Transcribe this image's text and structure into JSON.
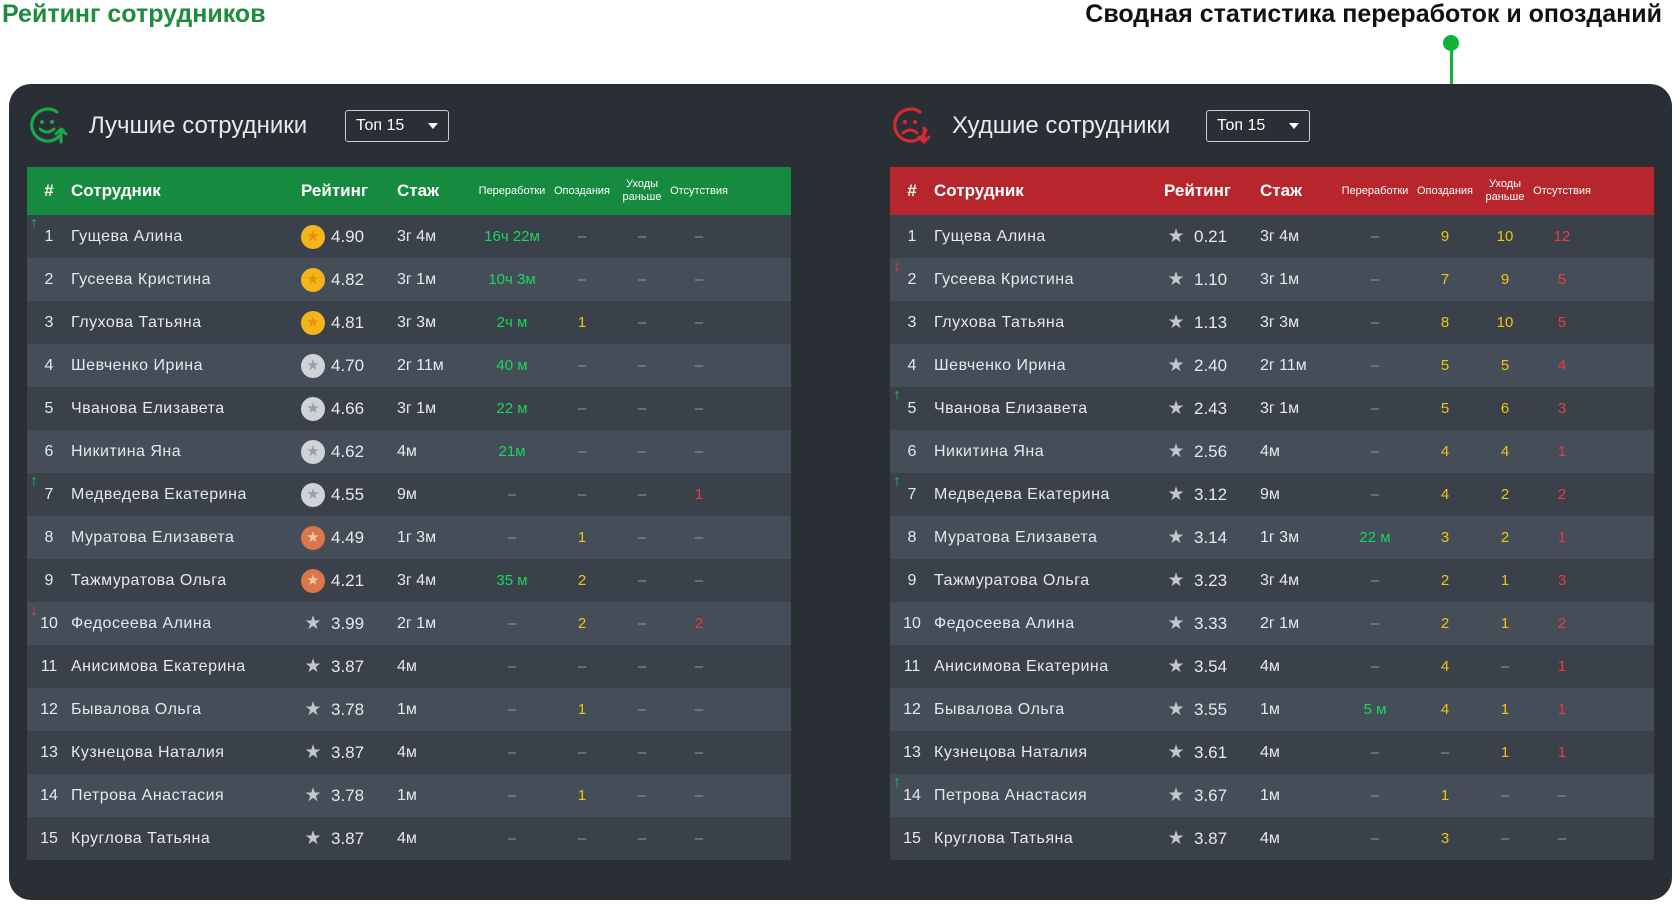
{
  "header": {
    "title": "Рейтинг сотрудников",
    "annotation": "Сводная статистика переработок и опозданий"
  },
  "columns": {
    "num": "#",
    "employee": "Сотрудник",
    "rating": "Рейтинг",
    "tenure": "Стаж",
    "overtime": "Переработки",
    "late": "Опоздания",
    "early_leave": "Уходы раньше",
    "absence": "Отсутствия"
  },
  "best": {
    "title": "Лучшие сотрудники",
    "select": "Топ 15",
    "rows": [
      {
        "num": "1",
        "trend": "up",
        "name": "Гущева Алина",
        "medal": "gold",
        "rating": "4.90",
        "tenure": "3г 4м",
        "overtime": "16ч 22м",
        "late": "–",
        "early": "–",
        "absent": "–"
      },
      {
        "num": "2",
        "trend": "",
        "name": "Гусеева Кристина",
        "medal": "gold",
        "rating": "4.82",
        "tenure": "3г 1м",
        "overtime": "10ч 3м",
        "late": "–",
        "early": "–",
        "absent": "–"
      },
      {
        "num": "3",
        "trend": "",
        "name": "Глухова Татьяна",
        "medal": "gold",
        "rating": "4.81",
        "tenure": "3г 3м",
        "overtime": "2ч м",
        "late": "1",
        "early": "–",
        "absent": "–"
      },
      {
        "num": "4",
        "trend": "",
        "name": "Шевченко Ирина",
        "medal": "silver",
        "rating": "4.70",
        "tenure": "2г 11м",
        "overtime": "40 м",
        "late": "–",
        "early": "–",
        "absent": "–"
      },
      {
        "num": "5",
        "trend": "",
        "name": "Чванова Елизавета",
        "medal": "silver",
        "rating": "4.66",
        "tenure": "3г 1м",
        "overtime": "22 м",
        "late": "–",
        "early": "–",
        "absent": "–"
      },
      {
        "num": "6",
        "trend": "",
        "name": "Никитина Яна",
        "medal": "silver",
        "rating": "4.62",
        "tenure": "4м",
        "overtime": "21м",
        "late": "–",
        "early": "–",
        "absent": "–"
      },
      {
        "num": "7",
        "trend": "up",
        "name": "Медведева Екатерина",
        "medal": "silver",
        "rating": "4.55",
        "tenure": "9м",
        "overtime": "–",
        "late": "–",
        "early": "–",
        "absent": "1"
      },
      {
        "num": "8",
        "trend": "",
        "name": "Муратова Елизавета",
        "medal": "bronze",
        "rating": "4.49",
        "tenure": "1г 3м",
        "overtime": "–",
        "late": "1",
        "early": "–",
        "absent": "–"
      },
      {
        "num": "9",
        "trend": "",
        "name": "Тажмуратова Ольга",
        "medal": "bronze",
        "rating": "4.21",
        "tenure": "3г 4м",
        "overtime": "35 м",
        "late": "2",
        "early": "–",
        "absent": "–"
      },
      {
        "num": "10",
        "trend": "down",
        "name": "Федосеева Алина",
        "medal": "none",
        "rating": "3.99",
        "tenure": "2г 1м",
        "overtime": "–",
        "late": "2",
        "early": "–",
        "absent": "2"
      },
      {
        "num": "11",
        "trend": "",
        "name": "Анисимова Екатерина",
        "medal": "none",
        "rating": "3.87",
        "tenure": "4м",
        "overtime": "–",
        "late": "–",
        "early": "–",
        "absent": "–"
      },
      {
        "num": "12",
        "trend": "",
        "name": "Бывалова Ольга",
        "medal": "none",
        "rating": "3.78",
        "tenure": "1м",
        "overtime": "–",
        "late": "1",
        "early": "–",
        "absent": "–"
      },
      {
        "num": "13",
        "trend": "",
        "name": "Кузнецова Наталия",
        "medal": "none",
        "rating": "3.87",
        "tenure": "4м",
        "overtime": "–",
        "late": "–",
        "early": "–",
        "absent": "–"
      },
      {
        "num": "14",
        "trend": "",
        "name": "Петрова Анастасия",
        "medal": "none",
        "rating": "3.78",
        "tenure": "1м",
        "overtime": "–",
        "late": "1",
        "early": "–",
        "absent": "–"
      },
      {
        "num": "15",
        "trend": "",
        "name": "Круглова Татьяна",
        "medal": "none",
        "rating": "3.87",
        "tenure": "4м",
        "overtime": "–",
        "late": "–",
        "early": "–",
        "absent": "–"
      }
    ]
  },
  "worst": {
    "title": "Худшие сотрудники",
    "select": "Топ 15",
    "rows": [
      {
        "num": "1",
        "trend": "",
        "name": "Гущева Алина",
        "medal": "none",
        "rating": "0.21",
        "tenure": "3г 4м",
        "overtime": "–",
        "late": "9",
        "early": "10",
        "absent": "12"
      },
      {
        "num": "2",
        "trend": "down",
        "name": "Гусеева Кристина",
        "medal": "none",
        "rating": "1.10",
        "tenure": "3г 1м",
        "overtime": "–",
        "late": "7",
        "early": "9",
        "absent": "5"
      },
      {
        "num": "3",
        "trend": "",
        "name": "Глухова Татьяна",
        "medal": "none",
        "rating": "1.13",
        "tenure": "3г 3м",
        "overtime": "–",
        "late": "8",
        "early": "10",
        "absent": "5"
      },
      {
        "num": "4",
        "trend": "",
        "name": "Шевченко Ирина",
        "medal": "none",
        "rating": "2.40",
        "tenure": "2г 11м",
        "overtime": "–",
        "late": "5",
        "early": "5",
        "absent": "4"
      },
      {
        "num": "5",
        "trend": "up",
        "name": "Чванова Елизавета",
        "medal": "none",
        "rating": "2.43",
        "tenure": "3г 1м",
        "overtime": "–",
        "late": "5",
        "early": "6",
        "absent": "3"
      },
      {
        "num": "6",
        "trend": "",
        "name": "Никитина Яна",
        "medal": "none",
        "rating": "2.56",
        "tenure": "4м",
        "overtime": "–",
        "late": "4",
        "early": "4",
        "absent": "1"
      },
      {
        "num": "7",
        "trend": "up",
        "name": "Медведева Екатерина",
        "medal": "none",
        "rating": "3.12",
        "tenure": "9м",
        "overtime": "–",
        "late": "4",
        "early": "2",
        "absent": "2"
      },
      {
        "num": "8",
        "trend": "",
        "name": "Муратова Елизавета",
        "medal": "none",
        "rating": "3.14",
        "tenure": "1г 3м",
        "overtime": "22 м",
        "late": "3",
        "early": "2",
        "absent": "1"
      },
      {
        "num": "9",
        "trend": "",
        "name": "Тажмуратова Ольга",
        "medal": "none",
        "rating": "3.23",
        "tenure": "3г 4м",
        "overtime": "–",
        "late": "2",
        "early": "1",
        "absent": "3"
      },
      {
        "num": "10",
        "trend": "",
        "name": "Федосеева Алина",
        "medal": "none",
        "rating": "3.33",
        "tenure": "2г 1м",
        "overtime": "–",
        "late": "2",
        "early": "1",
        "absent": "2"
      },
      {
        "num": "11",
        "trend": "",
        "name": "Анисимова Екатерина",
        "medal": "none",
        "rating": "3.54",
        "tenure": "4м",
        "overtime": "–",
        "late": "4",
        "early": "–",
        "absent": "1"
      },
      {
        "num": "12",
        "trend": "",
        "name": "Бывалова Ольга",
        "medal": "none",
        "rating": "3.55",
        "tenure": "1м",
        "overtime": "5 м",
        "late": "4",
        "early": "1",
        "absent": "1"
      },
      {
        "num": "13",
        "trend": "",
        "name": "Кузнецова Наталия",
        "medal": "none",
        "rating": "3.61",
        "tenure": "4м",
        "overtime": "–",
        "late": "–",
        "early": "1",
        "absent": "1"
      },
      {
        "num": "14",
        "trend": "up",
        "name": "Петрова Анастасия",
        "medal": "none",
        "rating": "3.67",
        "tenure": "1м",
        "overtime": "–",
        "late": "1",
        "early": "–",
        "absent": "–"
      },
      {
        "num": "15",
        "trend": "",
        "name": "Круглова Татьяна",
        "medal": "none",
        "rating": "3.87",
        "tenure": "4м",
        "overtime": "–",
        "late": "3",
        "early": "–",
        "absent": "–"
      }
    ]
  },
  "colors": {
    "best_header": "#168b3f",
    "worst_header": "#b7262d",
    "card_bg": "#2a2e35",
    "overtime_green": "#19d65c",
    "late_yellow": "#f2c40e",
    "absent_red": "#ea3b41"
  },
  "icons": {
    "best": "happy-face-arrow-up-icon",
    "worst": "sad-face-arrow-down-icon",
    "rating": "star-icon",
    "trend_up": "arrow-up-icon",
    "trend_down": "arrow-down-icon"
  }
}
